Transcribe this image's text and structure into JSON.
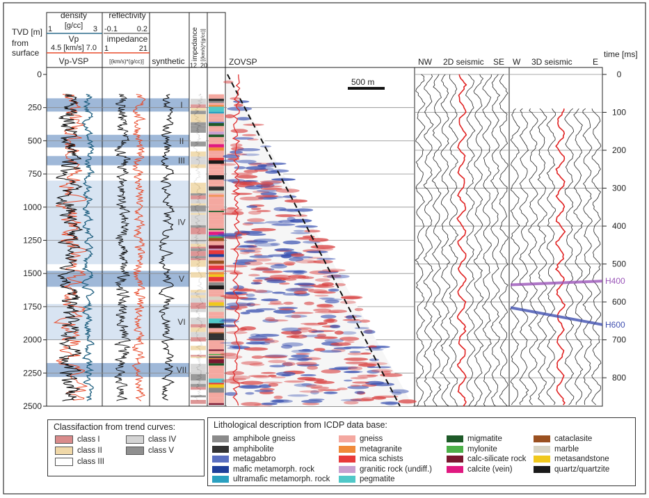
{
  "header": {
    "tvd_label": "TVD [m]",
    "tvd_from": "from",
    "tvd_surface": "surface",
    "density_title": "density",
    "density_unit": "[g/cc]",
    "density_min": "1",
    "density_max": "3",
    "vp_title": "Vp",
    "vp_unit": "4.5  [km/s]  7.0",
    "vp_vsp": "Vp-VSP",
    "refl_title": "reflectivity",
    "refl_min": "-0.1",
    "refl_max": "0.2",
    "imp_title": "impedance",
    "imp_min": "1",
    "imp_max": "21",
    "imp_unit": "[(km/s)*(g/cc)]",
    "synthetic": "synthetic",
    "imp2_title": "impedance",
    "imp2_unit": "[(km/s)*(g/cc)]",
    "imp2_min": "12",
    "imp2_max": "20",
    "zovsp": "ZOVSP",
    "scale_bar": "500 m",
    "nw": "NW",
    "seismic2d": "2D seismic",
    "se": "SE",
    "w": "W",
    "seismic3d": "3D seismic",
    "e": "E",
    "time_label": "time [ms]"
  },
  "chart_data": {
    "type": "well-log-seismic-panel",
    "depth_axis": {
      "label": "TVD [m] from surface",
      "range": [
        0,
        2500
      ],
      "ticks": [
        "0",
        "250",
        "500",
        "750",
        "1000",
        "1250",
        "1500",
        "1750",
        "2000",
        "2250",
        "2500"
      ]
    },
    "time_axis": {
      "label": "time [ms]",
      "range": [
        0,
        875
      ],
      "ticks": [
        "0",
        "100",
        "200",
        "300",
        "400",
        "500",
        "600",
        "700",
        "800"
      ]
    },
    "zones": [
      {
        "label": "I",
        "top": 180,
        "bottom": 280,
        "shade": "dark"
      },
      {
        "label": "II",
        "top": 455,
        "bottom": 550,
        "shade": "dark"
      },
      {
        "label": "III",
        "top": 615,
        "bottom": 685,
        "shade": "dark"
      },
      {
        "label": "IV",
        "top": 800,
        "bottom": 1430,
        "shade": "light"
      },
      {
        "label": "V",
        "top": 1480,
        "bottom": 1600,
        "shade": "dark"
      },
      {
        "label": "VI",
        "top": 1730,
        "bottom": 2000,
        "shade": "light"
      },
      {
        "label": "VII",
        "top": 2175,
        "bottom": 2280,
        "shade": "dark"
      }
    ],
    "horizons": [
      {
        "name": "H400",
        "color": "#9a55b8",
        "t_left": 555,
        "t_right": 545
      },
      {
        "name": "H600",
        "color": "#3f4fb0",
        "t_left": 615,
        "t_right": 660
      }
    ]
  },
  "legend_trend": {
    "title": "Classifaction from trend curves:",
    "items": [
      {
        "label": "class I",
        "color": "#d98b8b"
      },
      {
        "label": "class II",
        "color": "#f0d8a8"
      },
      {
        "label": "class III",
        "color": "#ffffff"
      },
      {
        "label": "class IV",
        "color": "#d4d4d4"
      },
      {
        "label": "class V",
        "color": "#8f8f8f"
      }
    ]
  },
  "legend_litho": {
    "title": "Lithological description from ICDP data base:",
    "items": [
      {
        "label": "amphibole gneiss",
        "color": "#8a8a8a"
      },
      {
        "label": "amphibolite",
        "color": "#333333"
      },
      {
        "label": "metagabbro",
        "color": "#5a6fc0"
      },
      {
        "label": "mafic metamorph. rock",
        "color": "#1f3f9a"
      },
      {
        "label": "ultramafic metamorph. rock",
        "color": "#2aa0c0"
      },
      {
        "label": "gneiss",
        "color": "#f4a8a0"
      },
      {
        "label": "metagranite",
        "color": "#f08a3a"
      },
      {
        "label": "mica schists",
        "color": "#e83a3a"
      },
      {
        "label": "granitic rock (undiff.)",
        "color": "#c8a0d0"
      },
      {
        "label": "pegmatite",
        "color": "#50c8c8"
      },
      {
        "label": "migmatite",
        "color": "#1e5a28"
      },
      {
        "label": "mylonite",
        "color": "#4cb048"
      },
      {
        "label": "calc-silicate rock",
        "color": "#7a1830"
      },
      {
        "label": "calcite (vein)",
        "color": "#e01880"
      },
      {
        "label": "cataclasite",
        "color": "#9a5020"
      },
      {
        "label": "marble",
        "color": "#d8d4c4"
      },
      {
        "label": "metasandstone",
        "color": "#f0c81c"
      },
      {
        "label": "quartz/quartzite",
        "color": "#1a1a1a"
      }
    ]
  }
}
